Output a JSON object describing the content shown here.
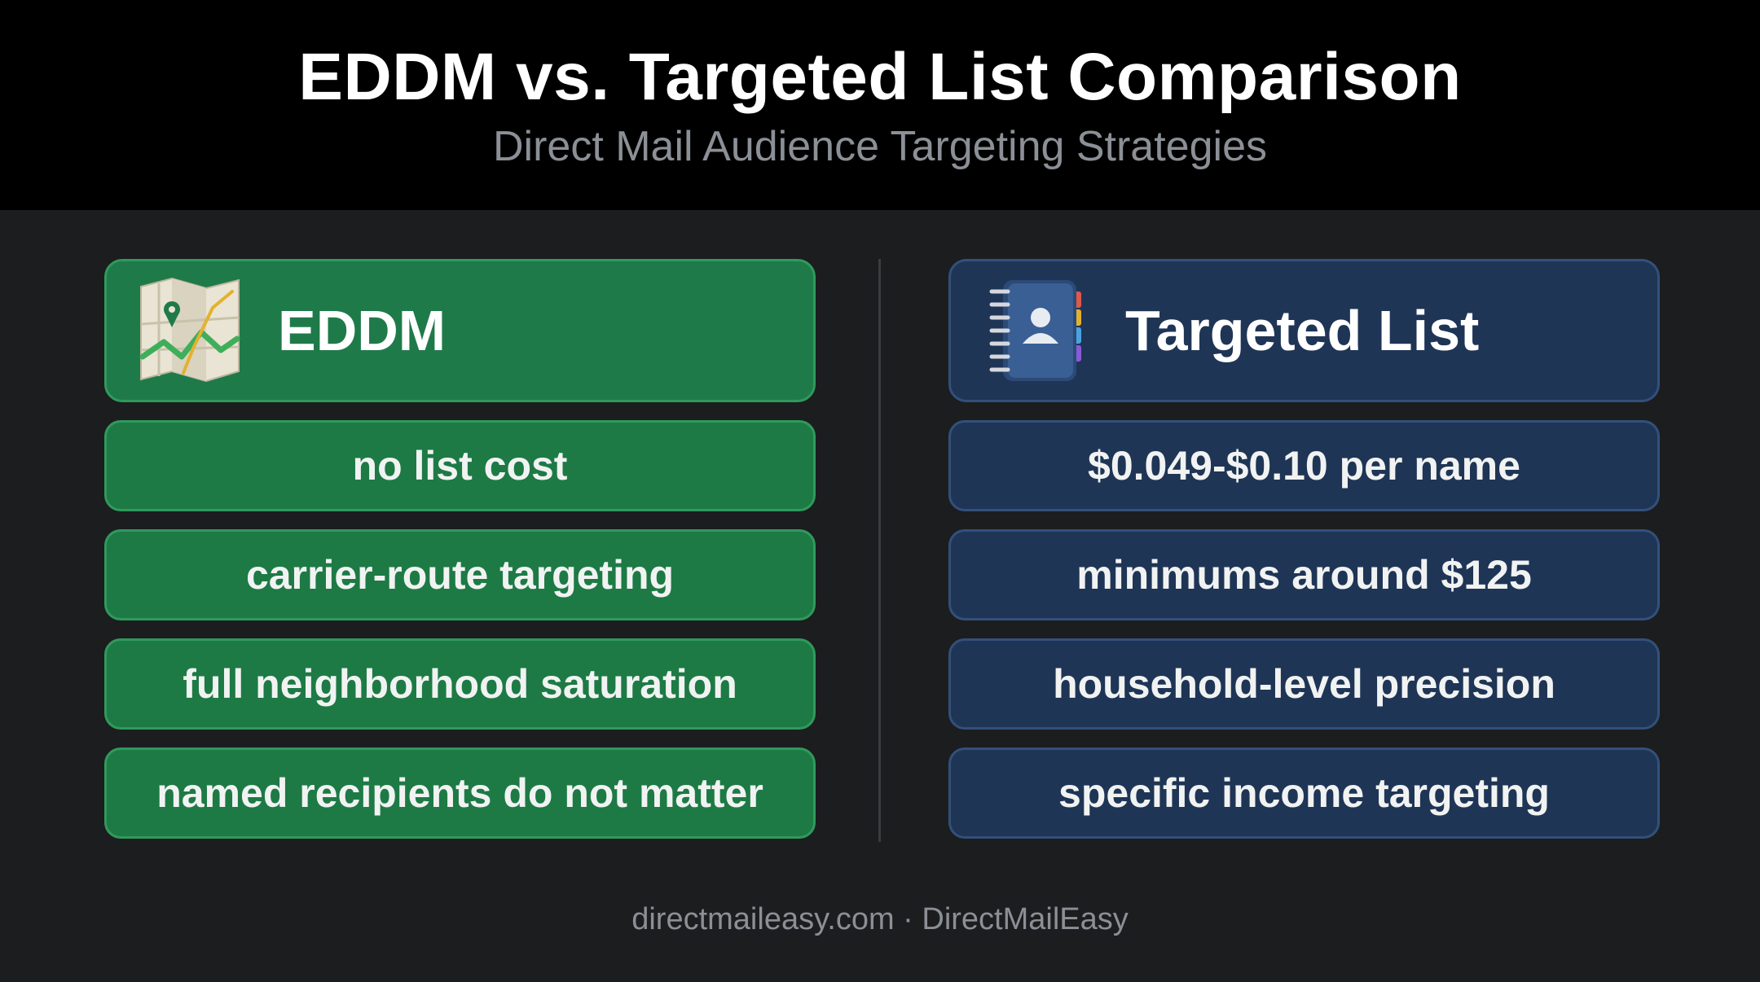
{
  "header": {
    "title": "EDDM vs. Targeted List Comparison",
    "subtitle": "Direct Mail Audience Targeting Strategies"
  },
  "left": {
    "title": "EDDM",
    "icon": "map-icon",
    "items": [
      "no list cost",
      "carrier-route targeting",
      "full neighborhood saturation",
      "named recipients do not matter"
    ]
  },
  "right": {
    "title": "Targeted List",
    "icon": "address-book-icon",
    "items": [
      "$0.049-$0.10 per name",
      "minimums around $125",
      "household-level precision",
      "specific income targeting"
    ]
  },
  "footer": "directmaileasy.com · DirectMailEasy",
  "colors": {
    "eddm_green": "#1f7a4a",
    "targeted_blue": "#1f3556",
    "background": "#1c1d1f"
  }
}
